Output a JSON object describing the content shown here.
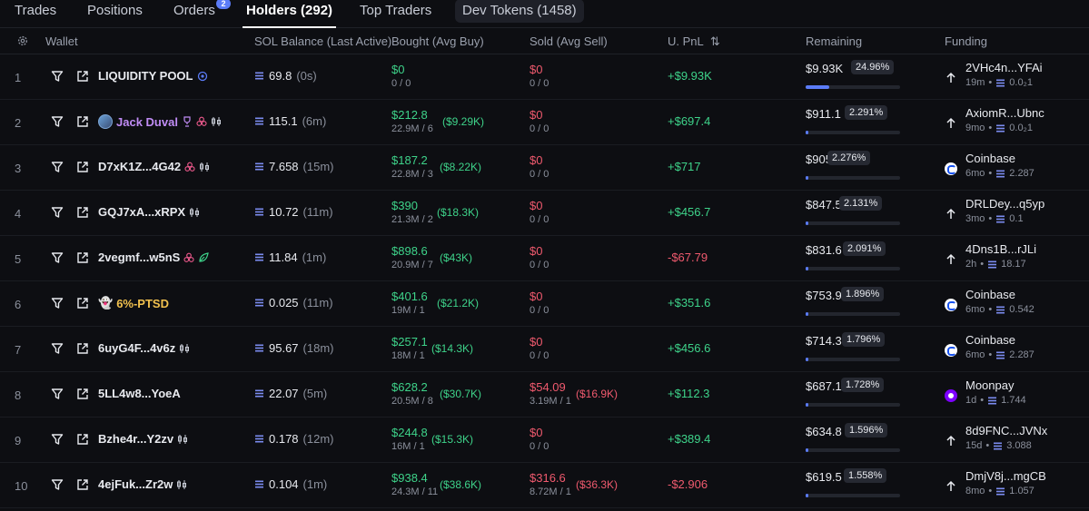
{
  "tabs": [
    {
      "label": "Trades"
    },
    {
      "label": "Positions"
    },
    {
      "label": "Orders",
      "badge": "2"
    },
    {
      "label": "Holders (292)"
    },
    {
      "label": "Top Traders"
    },
    {
      "label": "Dev Tokens (1458)"
    }
  ],
  "columns": {
    "wallet": "Wallet",
    "sol_balance": "SOL Balance (Last Active)",
    "bought": "Bought (Avg Buy)",
    "sold": "Sold (Avg Sell)",
    "upnl": "U. PnL",
    "remaining": "Remaining",
    "funding": "Funding"
  },
  "colors": {
    "positive": "#3ed38a",
    "negative": "#f05a6e",
    "accent": "#5b7cf7"
  },
  "rows": [
    {
      "rank": "1",
      "wallet": "LIQUIDITY POOL",
      "style": "plain",
      "tags": [
        "pool-icon"
      ],
      "balance": "69.8",
      "ago": "(0s)",
      "bought": "$0",
      "bought_sub": "0 / 0",
      "bought_avg": "",
      "sold": "$0",
      "sold_sub": "0 / 0",
      "sold_avg": "",
      "pnl": "+$9.93K",
      "pnl_sign": "pos",
      "remaining": "$9.93K",
      "remaining_pct": "24.96%",
      "remaining_fill": 0.2496,
      "funding_icon": "arrow-up-icon",
      "funding": "2VHc4n...YFAi",
      "funding_age": "19m",
      "funding_amt": "0.0₂1"
    },
    {
      "rank": "2",
      "wallet": "Jack Duval",
      "style": "purple",
      "avatar": true,
      "tags": [
        "trophy-icon",
        "cluster-icon",
        "candle-icon"
      ],
      "balance": "115.1",
      "ago": "(6m)",
      "bought": "$212.8",
      "bought_sub": "22.9M / 6",
      "bought_avg": "($9.29K)",
      "sold": "$0",
      "sold_sub": "0 / 0",
      "sold_avg": "",
      "pnl": "+$697.4",
      "pnl_sign": "pos",
      "remaining": "$911.1",
      "remaining_pct": "2.291%",
      "remaining_fill": 0.02291,
      "funding_icon": "arrow-up-icon",
      "funding": "AxiomR...Ubnc",
      "funding_age": "9mo",
      "funding_amt": "0.0₂1"
    },
    {
      "rank": "3",
      "wallet": "D7xK1Z...4G42",
      "style": "plain",
      "tags": [
        "cluster-icon",
        "candle-icon"
      ],
      "balance": "7.658",
      "ago": "(15m)",
      "bought": "$187.2",
      "bought_sub": "22.8M / 3",
      "bought_avg": "($8.22K)",
      "sold": "$0",
      "sold_sub": "0 / 0",
      "sold_avg": "",
      "pnl": "+$717",
      "pnl_sign": "pos",
      "remaining": "$905",
      "remaining_pct": "2.276%",
      "remaining_fill": 0.02276,
      "funding_icon": "coinbase-icon",
      "funding": "Coinbase",
      "funding_age": "6mo",
      "funding_amt": "2.287"
    },
    {
      "rank": "4",
      "wallet": "GQJ7xA...xRPX",
      "style": "plain",
      "tags": [
        "candle-icon"
      ],
      "balance": "10.72",
      "ago": "(11m)",
      "bought": "$390",
      "bought_sub": "21.3M / 2",
      "bought_avg": "($18.3K)",
      "sold": "$0",
      "sold_sub": "0 / 0",
      "sold_avg": "",
      "pnl": "+$456.7",
      "pnl_sign": "pos",
      "remaining": "$847.5",
      "remaining_pct": "2.131%",
      "remaining_fill": 0.02131,
      "funding_icon": "arrow-up-icon",
      "funding": "DRLDey...q5yp",
      "funding_age": "3mo",
      "funding_amt": "0.1"
    },
    {
      "rank": "5",
      "wallet": "2vegmf...w5nS",
      "style": "plain",
      "tags": [
        "cluster-icon",
        "leaf-icon"
      ],
      "balance": "11.84",
      "ago": "(1m)",
      "bought": "$898.6",
      "bought_sub": "20.9M / 7",
      "bought_avg": "($43K)",
      "sold": "$0",
      "sold_sub": "0 / 0",
      "sold_avg": "",
      "pnl": "-$67.79",
      "pnl_sign": "neg",
      "remaining": "$831.6",
      "remaining_pct": "2.091%",
      "remaining_fill": 0.02091,
      "funding_icon": "arrow-up-icon",
      "funding": "4Dns1B...rJLi",
      "funding_age": "2h",
      "funding_amt": "18.17"
    },
    {
      "rank": "6",
      "wallet": "6%-PTSD",
      "style": "gold",
      "ghost": true,
      "tags": [],
      "balance": "0.025",
      "ago": "(11m)",
      "bought": "$401.6",
      "bought_sub": "19M / 1",
      "bought_avg": "($21.2K)",
      "sold": "$0",
      "sold_sub": "0 / 0",
      "sold_avg": "",
      "pnl": "+$351.6",
      "pnl_sign": "pos",
      "remaining": "$753.9",
      "remaining_pct": "1.896%",
      "remaining_fill": 0.01896,
      "funding_icon": "coinbase-icon",
      "funding": "Coinbase",
      "funding_age": "6mo",
      "funding_amt": "0.542"
    },
    {
      "rank": "7",
      "wallet": "6uyG4F...4v6z",
      "style": "plain",
      "tags": [
        "candle-icon"
      ],
      "balance": "95.67",
      "ago": "(18m)",
      "bought": "$257.1",
      "bought_sub": "18M / 1",
      "bought_avg": "($14.3K)",
      "sold": "$0",
      "sold_sub": "0 / 0",
      "sold_avg": "",
      "pnl": "+$456.6",
      "pnl_sign": "pos",
      "remaining": "$714.3",
      "remaining_pct": "1.796%",
      "remaining_fill": 0.01796,
      "funding_icon": "coinbase-icon",
      "funding": "Coinbase",
      "funding_age": "6mo",
      "funding_amt": "2.287"
    },
    {
      "rank": "8",
      "wallet": "5LL4w8...YoeA",
      "style": "plain",
      "tags": [],
      "balance": "22.07",
      "ago": "(5m)",
      "bought": "$628.2",
      "bought_sub": "20.5M / 8",
      "bought_avg": "($30.7K)",
      "sold": "$54.09",
      "sold_sub": "3.19M / 1",
      "sold_avg": "($16.9K)",
      "pnl": "+$112.3",
      "pnl_sign": "pos",
      "remaining": "$687.1",
      "remaining_pct": "1.728%",
      "remaining_fill": 0.01728,
      "funding_icon": "moonpay-icon",
      "funding": "Moonpay",
      "funding_age": "1d",
      "funding_amt": "1.744"
    },
    {
      "rank": "9",
      "wallet": "Bzhe4r...Y2zv",
      "style": "plain",
      "tags": [
        "candle-icon"
      ],
      "balance": "0.178",
      "ago": "(12m)",
      "bought": "$244.8",
      "bought_sub": "16M / 1",
      "bought_avg": "($15.3K)",
      "sold": "$0",
      "sold_sub": "0 / 0",
      "sold_avg": "",
      "pnl": "+$389.4",
      "pnl_sign": "pos",
      "remaining": "$634.8",
      "remaining_pct": "1.596%",
      "remaining_fill": 0.01596,
      "funding_icon": "arrow-up-icon",
      "funding": "8d9FNC...JVNx",
      "funding_age": "15d",
      "funding_amt": "3.088"
    },
    {
      "rank": "10",
      "wallet": "4ejFuk...Zr2w",
      "style": "plain",
      "tags": [
        "candle-icon"
      ],
      "balance": "0.104",
      "ago": "(1m)",
      "bought": "$938.4",
      "bought_sub": "24.3M / 11",
      "bought_avg": "($38.6K)",
      "sold": "$316.6",
      "sold_sub": "8.72M / 1",
      "sold_avg": "($36.3K)",
      "pnl": "-$2.906",
      "pnl_sign": "neg",
      "remaining": "$619.5",
      "remaining_pct": "1.558%",
      "remaining_fill": 0.01558,
      "funding_icon": "arrow-up-icon",
      "funding": "DmjV8j...mgCB",
      "funding_age": "8mo",
      "funding_amt": "1.057"
    }
  ]
}
